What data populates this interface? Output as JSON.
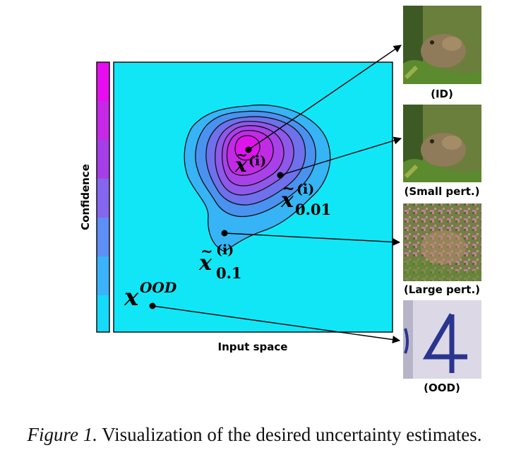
{
  "colorbar": {
    "label": "Confidence",
    "colors": [
      "#e60ef0",
      "#c628e8",
      "#a53ee8",
      "#8566ee",
      "#5d8ff4",
      "#3ab3fb",
      "#16daf9"
    ]
  },
  "plot": {
    "xlabel": "Input space",
    "background": "#11e6f7",
    "contour_colors": [
      "#36b4f5",
      "#4a92f0",
      "#6e70ec",
      "#8f58ea",
      "#a842e8",
      "#c22be6",
      "#dd14ec"
    ]
  },
  "points": {
    "id": {
      "base": "x",
      "sup": "(i)"
    },
    "small": {
      "base": "x",
      "sup": "(i)",
      "sub": "0.01"
    },
    "large": {
      "base": "x",
      "sup": "(i)",
      "sub": "0.1"
    },
    "ood": {
      "base": "x",
      "sup": "OOD"
    }
  },
  "thumbnails": [
    {
      "label": "(ID)",
      "icon": "frog-image"
    },
    {
      "label": "(Small pert.)",
      "icon": "frog-image"
    },
    {
      "label": "(Large pert.)",
      "icon": "noisy-frog-image"
    },
    {
      "label": "(OOD)",
      "icon": "digit-four-image"
    }
  ],
  "caption": {
    "prefix": "Figure 1.",
    "text": " Visualization of the desired uncertainty estimates."
  }
}
